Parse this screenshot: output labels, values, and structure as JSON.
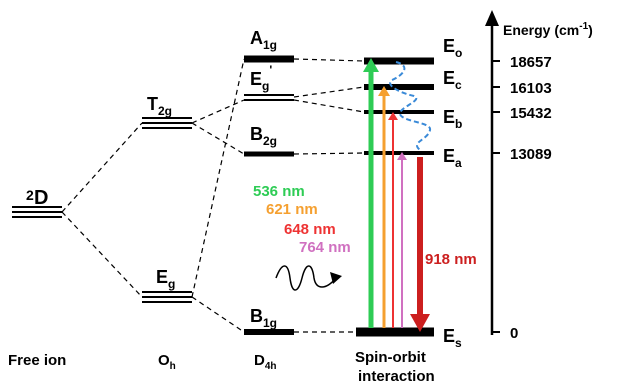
{
  "columns": {
    "free_ion": "Free ion",
    "oh": {
      "main": "O",
      "sub": "h"
    },
    "d4h": {
      "main": "D",
      "sub": "4h"
    },
    "spin_orbit": [
      "Spin-orbit",
      "interaction"
    ]
  },
  "free_ion_level": {
    "sup": "2",
    "main": "D"
  },
  "oh_levels": {
    "t2g": {
      "main": "T",
      "sub": "2g"
    },
    "eg": {
      "main": "E",
      "sub": "g"
    }
  },
  "d4h_levels": {
    "a1g": {
      "main": "A",
      "sub": "1g"
    },
    "eg": {
      "main": "E",
      "sub": "g",
      "prime": "'"
    },
    "b2g": {
      "main": "B",
      "sub": "2g"
    },
    "b1g": {
      "main": "B",
      "sub": "1g"
    }
  },
  "so_levels": {
    "eo": {
      "main": "E",
      "sub": "o"
    },
    "ec": {
      "main": "E",
      "sub": "c"
    },
    "eb": {
      "main": "E",
      "sub": "b"
    },
    "ea": {
      "main": "E",
      "sub": "a"
    },
    "es": {
      "main": "E",
      "sub": "s"
    }
  },
  "energy_axis": {
    "label": "Energy (cm",
    "label_sup": "-1",
    "label_close": ")",
    "ticks": [
      "18657",
      "16103",
      "15432",
      "13089",
      "0"
    ]
  },
  "transitions": [
    {
      "label": "536 nm",
      "color": "#2ecc55"
    },
    {
      "label": "621 nm",
      "color": "#f5a030"
    },
    {
      "label": "648 nm",
      "color": "#ee3333"
    },
    {
      "label": "764 nm",
      "color": "#d070c0"
    },
    {
      "label": "918 nm",
      "color": "#cc1f1f"
    }
  ],
  "relaxation_color": "#3a8ad8"
}
